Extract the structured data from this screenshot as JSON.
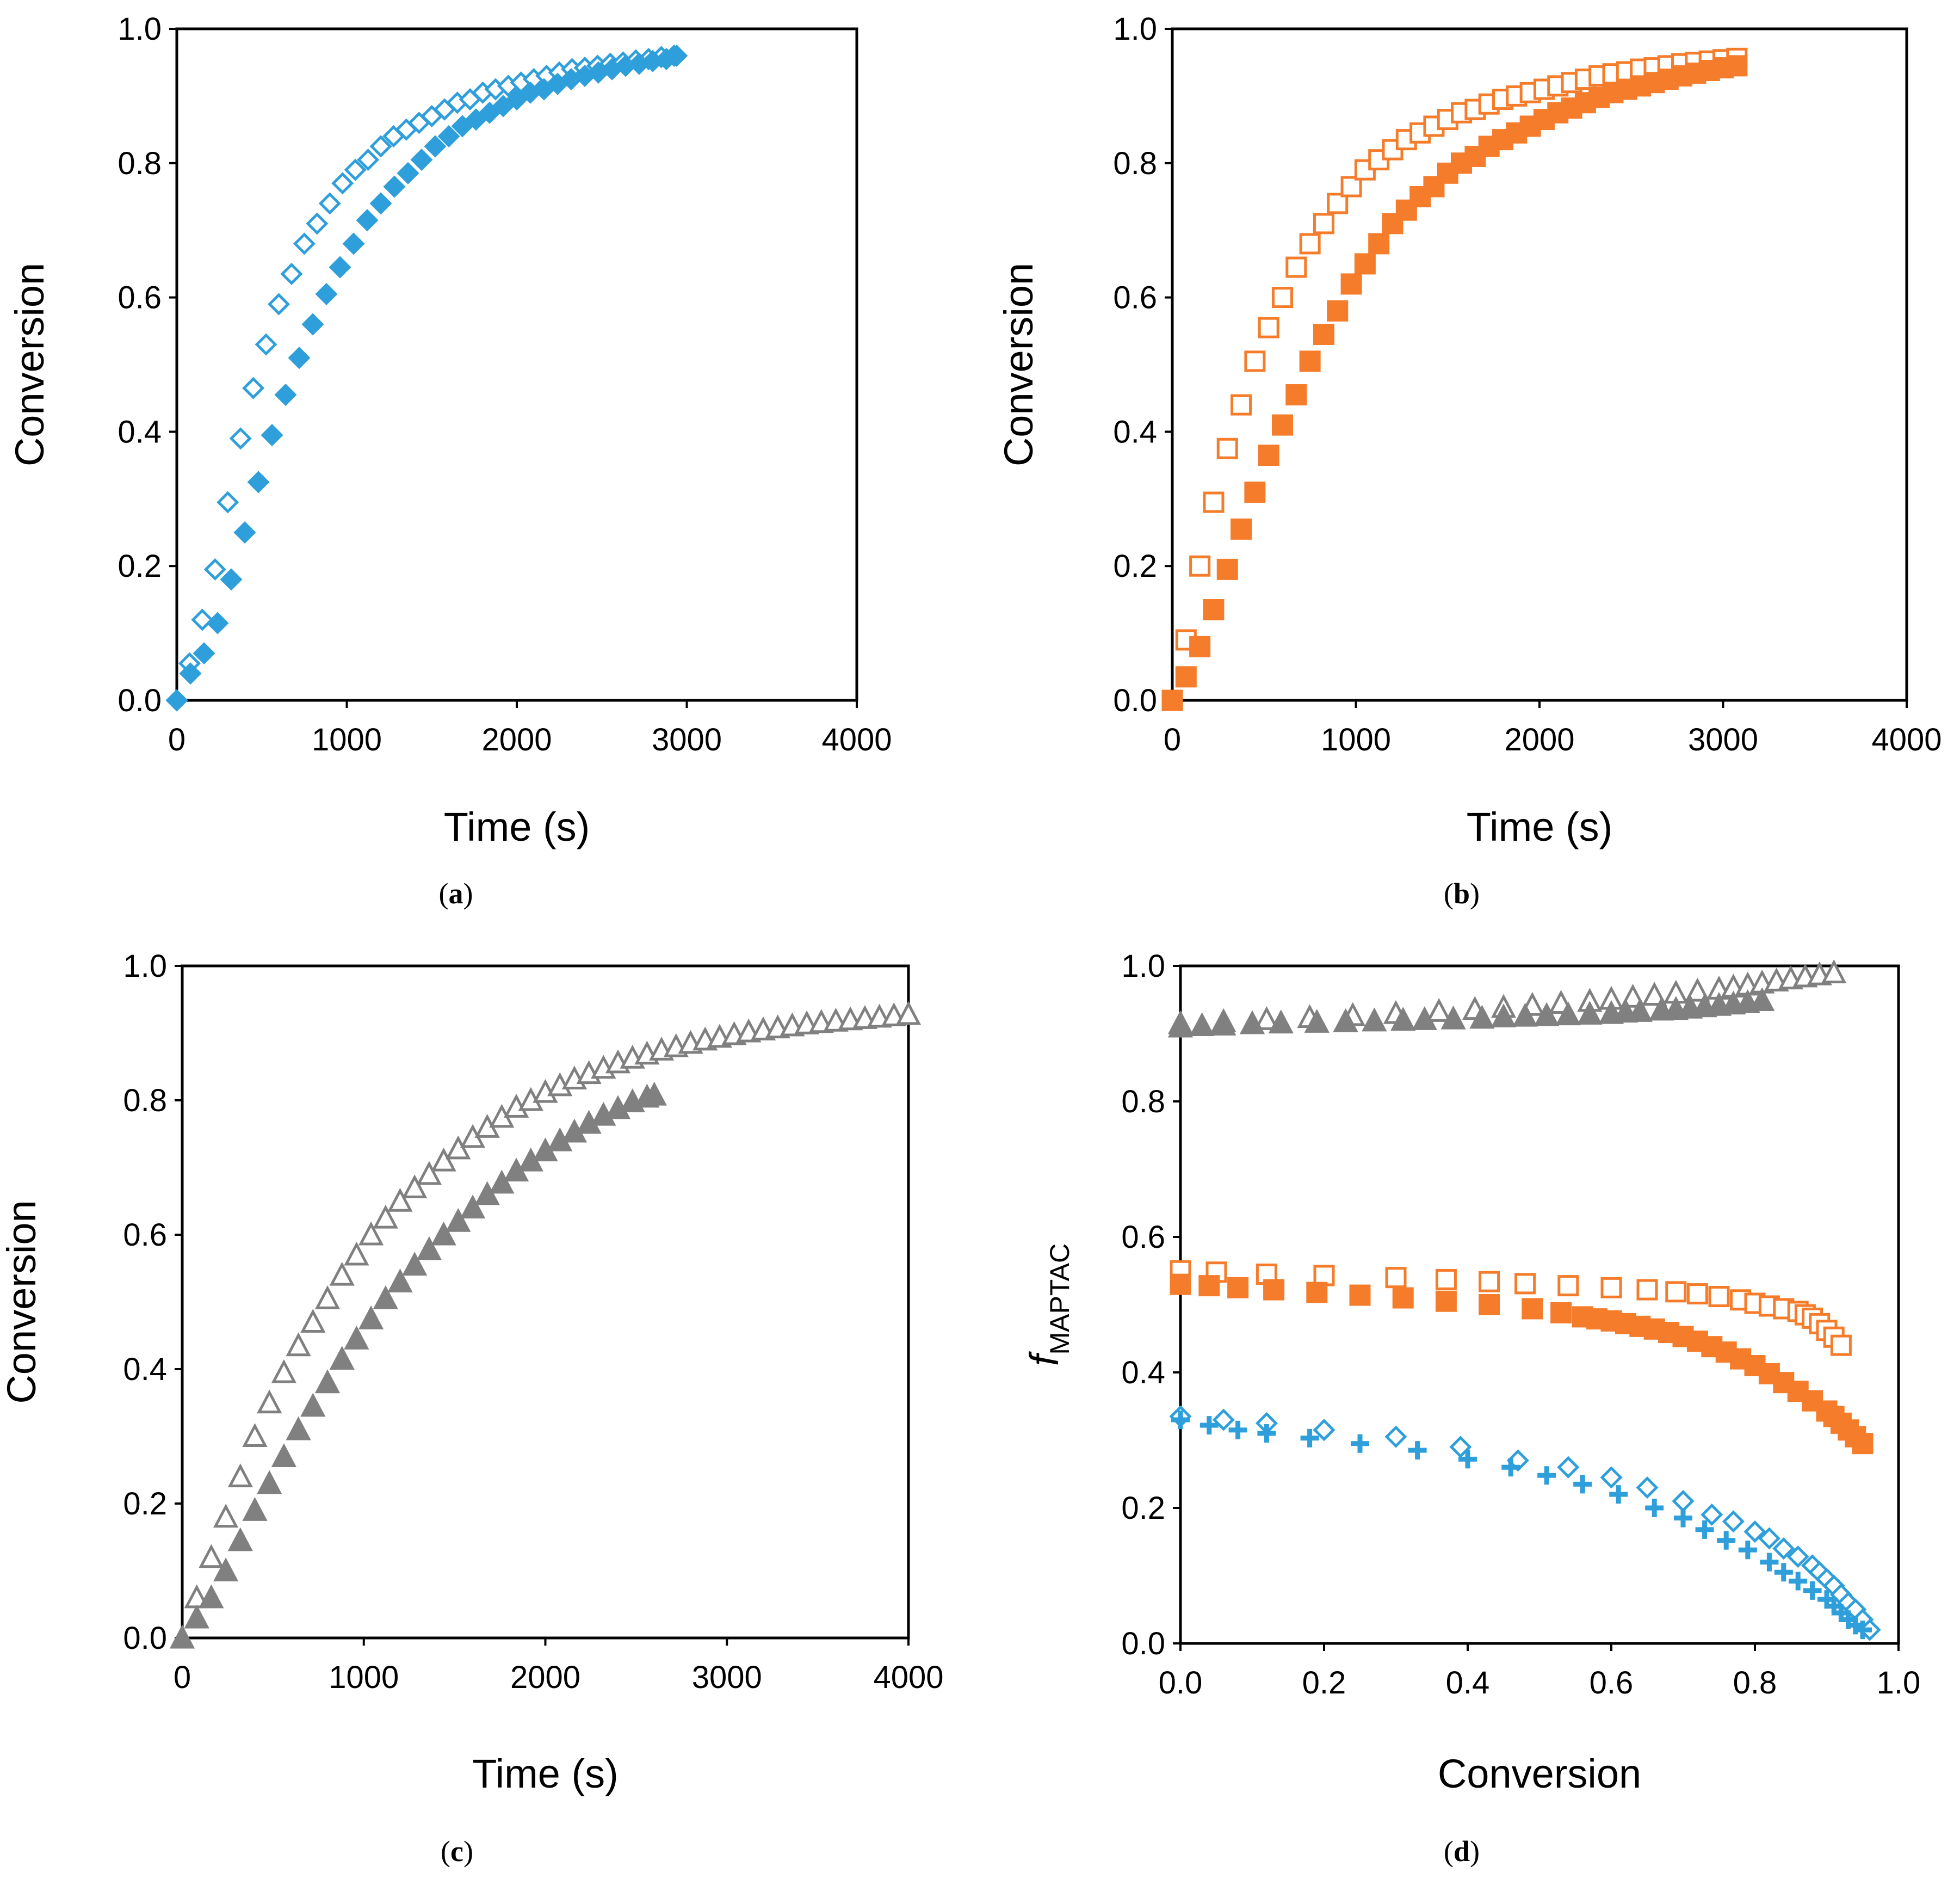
{
  "colors": {
    "blue": "#2E9FDB",
    "orange": "#F47C2A",
    "gray": "#808080"
  },
  "chart_data": [
    {
      "id": "a",
      "type": "scatter",
      "caption": {
        "open": "(",
        "letter": "a",
        "close": ")"
      },
      "xlabel": "Time (s)",
      "ylabel": "Conversion",
      "xlim": [
        0,
        4000
      ],
      "ylim": [
        0,
        1
      ],
      "xticks": [
        "0",
        "1000",
        "2000",
        "3000",
        "4000"
      ],
      "yticks": [
        "0.0",
        "0.2",
        "0.4",
        "0.6",
        "0.8",
        "1.0"
      ],
      "grid": false,
      "series": [
        {
          "name": "open diamonds",
          "color": "blue",
          "marker": "diamond",
          "fill": "open",
          "x": [
            0,
            75,
            150,
            225,
            300,
            375,
            450,
            525,
            600,
            675,
            750,
            825,
            900,
            975,
            1050,
            1125,
            1200,
            1275,
            1350,
            1425,
            1500,
            1575,
            1650,
            1725,
            1800,
            1875,
            1950,
            2025,
            2100,
            2175,
            2250,
            2325,
            2400,
            2475,
            2550,
            2625,
            2700,
            2775,
            2850,
            2925
          ],
          "y": [
            0.0,
            0.055,
            0.12,
            0.195,
            0.295,
            0.39,
            0.465,
            0.53,
            0.59,
            0.635,
            0.68,
            0.71,
            0.74,
            0.77,
            0.79,
            0.805,
            0.825,
            0.84,
            0.85,
            0.86,
            0.87,
            0.88,
            0.89,
            0.895,
            0.905,
            0.91,
            0.915,
            0.92,
            0.925,
            0.93,
            0.935,
            0.94,
            0.942,
            0.945,
            0.948,
            0.95,
            0.953,
            0.955,
            0.958,
            0.96
          ]
        },
        {
          "name": "filled diamonds",
          "color": "blue",
          "marker": "diamond",
          "fill": "filled",
          "x": [
            0,
            80,
            160,
            240,
            320,
            400,
            480,
            560,
            640,
            720,
            800,
            880,
            960,
            1040,
            1120,
            1200,
            1280,
            1360,
            1440,
            1520,
            1600,
            1680,
            1760,
            1840,
            1920,
            2000,
            2080,
            2160,
            2240,
            2320,
            2400,
            2480,
            2560,
            2640,
            2720,
            2800,
            2880,
            2940
          ],
          "y": [
            0.0,
            0.04,
            0.07,
            0.115,
            0.18,
            0.25,
            0.325,
            0.395,
            0.455,
            0.51,
            0.56,
            0.605,
            0.645,
            0.68,
            0.715,
            0.74,
            0.765,
            0.785,
            0.805,
            0.825,
            0.84,
            0.855,
            0.865,
            0.875,
            0.885,
            0.895,
            0.905,
            0.91,
            0.918,
            0.925,
            0.93,
            0.935,
            0.94,
            0.945,
            0.948,
            0.952,
            0.955,
            0.96
          ]
        }
      ]
    },
    {
      "id": "b",
      "type": "scatter",
      "caption": {
        "open": "(",
        "letter": "b",
        "close": ")"
      },
      "xlabel": "Time (s)",
      "ylabel": "Conversion",
      "xlim": [
        0,
        4000
      ],
      "ylim": [
        0,
        1
      ],
      "xticks": [
        "0",
        "1000",
        "2000",
        "3000",
        "4000"
      ],
      "yticks": [
        "0.0",
        "0.2",
        "0.4",
        "0.6",
        "0.8",
        "1.0"
      ],
      "grid": false,
      "series": [
        {
          "name": "open squares",
          "color": "orange",
          "marker": "square",
          "fill": "open",
          "x": [
            0,
            75,
            150,
            225,
            300,
            375,
            450,
            525,
            600,
            675,
            750,
            825,
            900,
            975,
            1050,
            1125,
            1200,
            1275,
            1350,
            1425,
            1500,
            1575,
            1650,
            1725,
            1800,
            1875,
            1950,
            2025,
            2100,
            2175,
            2250,
            2325,
            2400,
            2475,
            2550,
            2625,
            2700,
            2775,
            2850,
            2925,
            3000,
            3075
          ],
          "y": [
            0.0,
            0.09,
            0.2,
            0.295,
            0.375,
            0.44,
            0.505,
            0.555,
            0.6,
            0.645,
            0.68,
            0.71,
            0.74,
            0.765,
            0.79,
            0.805,
            0.82,
            0.835,
            0.845,
            0.855,
            0.865,
            0.875,
            0.88,
            0.888,
            0.895,
            0.9,
            0.905,
            0.91,
            0.915,
            0.92,
            0.925,
            0.93,
            0.933,
            0.936,
            0.94,
            0.942,
            0.945,
            0.948,
            0.95,
            0.952,
            0.954,
            0.956
          ]
        },
        {
          "name": "filled squares",
          "color": "orange",
          "marker": "square",
          "fill": "filled",
          "x": [
            0,
            75,
            150,
            225,
            300,
            375,
            450,
            525,
            600,
            675,
            750,
            825,
            900,
            975,
            1050,
            1125,
            1200,
            1275,
            1350,
            1425,
            1500,
            1575,
            1650,
            1725,
            1800,
            1875,
            1950,
            2025,
            2100,
            2175,
            2250,
            2325,
            2400,
            2475,
            2550,
            2625,
            2700,
            2775,
            2850,
            2925,
            3000,
            3075
          ],
          "y": [
            0.0,
            0.035,
            0.08,
            0.135,
            0.195,
            0.255,
            0.31,
            0.365,
            0.41,
            0.455,
            0.505,
            0.545,
            0.58,
            0.62,
            0.65,
            0.68,
            0.71,
            0.73,
            0.75,
            0.765,
            0.785,
            0.8,
            0.81,
            0.825,
            0.835,
            0.845,
            0.855,
            0.865,
            0.875,
            0.882,
            0.89,
            0.898,
            0.905,
            0.91,
            0.915,
            0.92,
            0.925,
            0.93,
            0.934,
            0.938,
            0.942,
            0.945
          ]
        }
      ]
    },
    {
      "id": "c",
      "type": "scatter",
      "caption": {
        "open": "(",
        "letter": "c",
        "close": ")"
      },
      "xlabel": "Time (s)",
      "ylabel": "Conversion",
      "xlim": [
        0,
        4000
      ],
      "ylim": [
        0,
        1
      ],
      "xticks": [
        "0",
        "1000",
        "2000",
        "3000",
        "4000"
      ],
      "yticks": [
        "0.0",
        "0.2",
        "0.4",
        "0.6",
        "0.8",
        "1.0"
      ],
      "grid": false,
      "series": [
        {
          "name": "open triangles",
          "color": "gray",
          "marker": "triangle",
          "fill": "open",
          "x": [
            0,
            80,
            160,
            240,
            320,
            400,
            480,
            560,
            640,
            720,
            800,
            880,
            960,
            1040,
            1120,
            1200,
            1280,
            1360,
            1440,
            1520,
            1600,
            1680,
            1760,
            1840,
            1920,
            2000,
            2080,
            2160,
            2240,
            2320,
            2400,
            2480,
            2560,
            2640,
            2720,
            2800,
            2880,
            2960,
            3040,
            3120,
            3200,
            3280,
            3360,
            3440,
            3520,
            3600,
            3680,
            3760,
            3840,
            3920,
            4000
          ],
          "y": [
            0.0,
            0.06,
            0.12,
            0.18,
            0.24,
            0.3,
            0.35,
            0.395,
            0.435,
            0.47,
            0.505,
            0.54,
            0.57,
            0.6,
            0.625,
            0.65,
            0.67,
            0.69,
            0.71,
            0.728,
            0.745,
            0.76,
            0.775,
            0.79,
            0.8,
            0.812,
            0.822,
            0.832,
            0.84,
            0.848,
            0.856,
            0.863,
            0.869,
            0.875,
            0.88,
            0.885,
            0.89,
            0.894,
            0.898,
            0.902,
            0.905,
            0.908,
            0.911,
            0.914,
            0.916,
            0.918,
            0.92,
            0.922,
            0.924,
            0.926,
            0.928
          ]
        },
        {
          "name": "filled triangles",
          "color": "gray",
          "marker": "triangle",
          "fill": "filled",
          "x": [
            0,
            80,
            160,
            240,
            320,
            400,
            480,
            560,
            640,
            720,
            800,
            880,
            960,
            1040,
            1120,
            1200,
            1280,
            1360,
            1440,
            1520,
            1600,
            1680,
            1760,
            1840,
            1920,
            2000,
            2080,
            2160,
            2240,
            2320,
            2400,
            2480,
            2560,
            2600
          ],
          "y": [
            0.0,
            0.03,
            0.06,
            0.1,
            0.145,
            0.19,
            0.23,
            0.27,
            0.31,
            0.345,
            0.38,
            0.415,
            0.445,
            0.475,
            0.505,
            0.53,
            0.555,
            0.578,
            0.6,
            0.62,
            0.64,
            0.66,
            0.677,
            0.695,
            0.71,
            0.725,
            0.74,
            0.753,
            0.766,
            0.778,
            0.788,
            0.798,
            0.805,
            0.808
          ]
        }
      ]
    },
    {
      "id": "d",
      "type": "scatter",
      "caption": {
        "open": "(",
        "letter": "d",
        "close": ")"
      },
      "xlabel": "Conversion",
      "ylabel": {
        "italic": "f",
        "subscript": "MAPTAC"
      },
      "xlim": [
        0,
        1
      ],
      "ylim": [
        0,
        1
      ],
      "xticks": [
        "0.0",
        "0.2",
        "0.4",
        "0.6",
        "0.8",
        "1.0"
      ],
      "yticks": [
        "0.0",
        "0.2",
        "0.4",
        "0.6",
        "0.8",
        "1.0"
      ],
      "grid": false,
      "series": [
        {
          "name": "open triangles",
          "color": "gray",
          "marker": "triangle",
          "fill": "open",
          "x": [
            0.0,
            0.06,
            0.12,
            0.18,
            0.24,
            0.3,
            0.36,
            0.41,
            0.45,
            0.49,
            0.53,
            0.57,
            0.6,
            0.63,
            0.66,
            0.69,
            0.72,
            0.75,
            0.77,
            0.79,
            0.81,
            0.83,
            0.85,
            0.87,
            0.89,
            0.91
          ],
          "y": [
            0.915,
            0.918,
            0.921,
            0.924,
            0.927,
            0.93,
            0.933,
            0.936,
            0.939,
            0.942,
            0.945,
            0.948,
            0.951,
            0.954,
            0.957,
            0.96,
            0.963,
            0.966,
            0.969,
            0.972,
            0.975,
            0.978,
            0.981,
            0.984,
            0.987,
            0.99
          ]
        },
        {
          "name": "filled triangles",
          "color": "gray",
          "marker": "triangle",
          "fill": "filled",
          "x": [
            0.0,
            0.03,
            0.06,
            0.1,
            0.14,
            0.19,
            0.23,
            0.27,
            0.31,
            0.34,
            0.38,
            0.42,
            0.45,
            0.48,
            0.51,
            0.54,
            0.57,
            0.6,
            0.62,
            0.64,
            0.67,
            0.69,
            0.71,
            0.73,
            0.75,
            0.77,
            0.79,
            0.81
          ],
          "y": [
            0.91,
            0.912,
            0.913,
            0.915,
            0.916,
            0.917,
            0.918,
            0.919,
            0.92,
            0.921,
            0.922,
            0.923,
            0.925,
            0.926,
            0.927,
            0.928,
            0.929,
            0.93,
            0.932,
            0.933,
            0.935,
            0.936,
            0.938,
            0.94,
            0.942,
            0.944,
            0.946,
            0.949
          ]
        },
        {
          "name": "open squares",
          "color": "orange",
          "marker": "square",
          "fill": "open",
          "x": [
            0.0,
            0.05,
            0.12,
            0.2,
            0.3,
            0.37,
            0.43,
            0.48,
            0.54,
            0.6,
            0.65,
            0.69,
            0.72,
            0.75,
            0.78,
            0.8,
            0.82,
            0.84,
            0.86,
            0.87,
            0.88,
            0.89,
            0.9,
            0.91,
            0.92
          ],
          "y": [
            0.55,
            0.548,
            0.545,
            0.543,
            0.54,
            0.537,
            0.534,
            0.531,
            0.528,
            0.525,
            0.522,
            0.519,
            0.516,
            0.512,
            0.507,
            0.502,
            0.498,
            0.494,
            0.49,
            0.485,
            0.48,
            0.472,
            0.462,
            0.452,
            0.44
          ]
        },
        {
          "name": "filled squares",
          "color": "orange",
          "marker": "square",
          "fill": "filled",
          "x": [
            0.0,
            0.04,
            0.08,
            0.13,
            0.19,
            0.25,
            0.31,
            0.37,
            0.43,
            0.49,
            0.53,
            0.56,
            0.58,
            0.6,
            0.62,
            0.64,
            0.66,
            0.68,
            0.7,
            0.72,
            0.74,
            0.76,
            0.78,
            0.8,
            0.82,
            0.84,
            0.86,
            0.88,
            0.9,
            0.91,
            0.92,
            0.93,
            0.94,
            0.95
          ],
          "y": [
            0.53,
            0.528,
            0.525,
            0.522,
            0.518,
            0.514,
            0.51,
            0.505,
            0.5,
            0.494,
            0.488,
            0.482,
            0.479,
            0.476,
            0.472,
            0.468,
            0.464,
            0.459,
            0.453,
            0.446,
            0.438,
            0.43,
            0.42,
            0.41,
            0.398,
            0.385,
            0.372,
            0.358,
            0.343,
            0.335,
            0.325,
            0.315,
            0.305,
            0.295
          ]
        },
        {
          "name": "open diamonds",
          "color": "blue",
          "marker": "diamond",
          "fill": "open",
          "x": [
            0.0,
            0.06,
            0.12,
            0.2,
            0.3,
            0.39,
            0.47,
            0.54,
            0.6,
            0.65,
            0.7,
            0.74,
            0.77,
            0.8,
            0.82,
            0.84,
            0.86,
            0.88,
            0.89,
            0.9,
            0.91,
            0.92,
            0.93,
            0.94,
            0.95,
            0.96
          ],
          "y": [
            0.335,
            0.33,
            0.325,
            0.315,
            0.305,
            0.29,
            0.27,
            0.26,
            0.245,
            0.23,
            0.21,
            0.19,
            0.18,
            0.165,
            0.155,
            0.14,
            0.128,
            0.115,
            0.105,
            0.095,
            0.085,
            0.072,
            0.06,
            0.05,
            0.035,
            0.02
          ]
        },
        {
          "name": "plus markers",
          "color": "blue",
          "marker": "plus",
          "fill": "filled",
          "x": [
            0.0,
            0.04,
            0.08,
            0.12,
            0.18,
            0.25,
            0.33,
            0.4,
            0.46,
            0.51,
            0.56,
            0.61,
            0.66,
            0.7,
            0.73,
            0.76,
            0.79,
            0.82,
            0.84,
            0.86,
            0.88,
            0.9,
            0.91,
            0.92,
            0.93,
            0.94,
            0.95
          ],
          "y": [
            0.33,
            0.322,
            0.315,
            0.31,
            0.303,
            0.295,
            0.285,
            0.272,
            0.26,
            0.248,
            0.235,
            0.22,
            0.2,
            0.185,
            0.168,
            0.152,
            0.138,
            0.12,
            0.105,
            0.092,
            0.078,
            0.065,
            0.055,
            0.045,
            0.035,
            0.027,
            0.02
          ]
        }
      ]
    }
  ]
}
